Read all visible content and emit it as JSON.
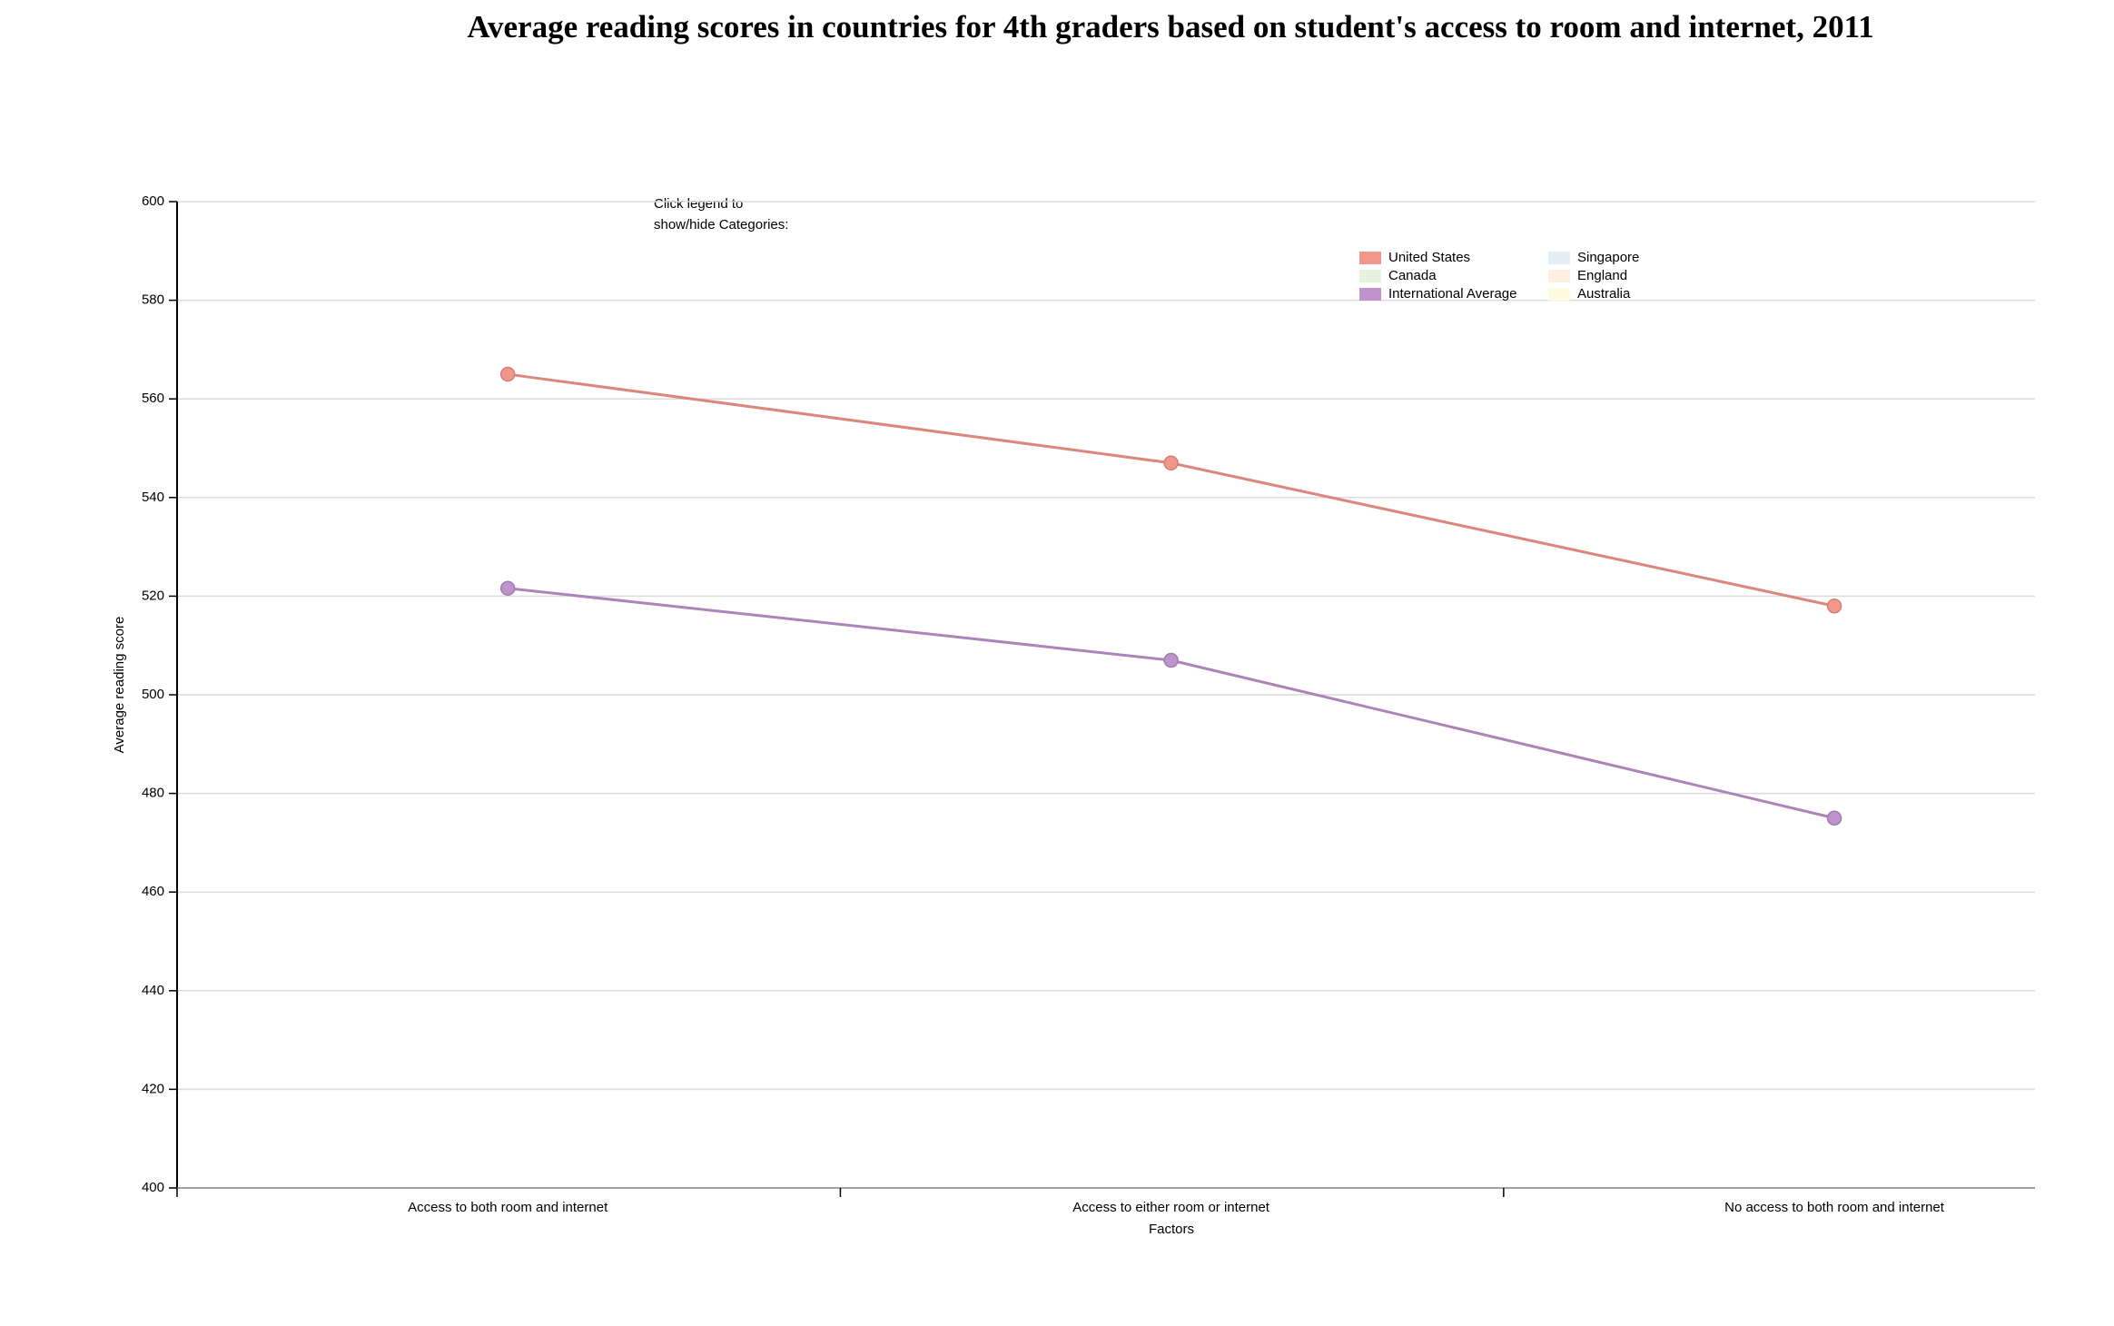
{
  "chart_data": {
    "type": "line",
    "title": "Average reading scores in countries for 4th graders based on student's access to room and internet, 2011",
    "xlabel": "Factors",
    "ylabel": "Average reading score",
    "legend_hint": [
      "Click legend to",
      "show/hide Categories:"
    ],
    "categories": [
      "Access to both room and internet",
      "Access to either room or internet",
      "No access to both room and internet"
    ],
    "series": [
      {
        "name": "United States",
        "color": "#f4968c",
        "visible": true,
        "values": [
          565,
          547,
          518
        ]
      },
      {
        "name": "Canada",
        "color": "#e6f4df",
        "visible": false,
        "values": [
          null,
          null,
          null
        ]
      },
      {
        "name": "International Average",
        "color": "#bf93cc",
        "visible": true,
        "values": [
          521.6,
          507,
          475
        ]
      },
      {
        "name": "Singapore",
        "color": "#e3edf6",
        "visible": false,
        "values": [
          null,
          null,
          null
        ]
      },
      {
        "name": "England",
        "color": "#fdeee2",
        "visible": false,
        "values": [
          null,
          null,
          null
        ]
      },
      {
        "name": "Australia",
        "color": "#fdfbe0",
        "visible": false,
        "values": [
          null,
          null,
          null
        ]
      }
    ],
    "ylim": [
      400,
      600
    ],
    "yticks": [
      400,
      420,
      440,
      460,
      480,
      500,
      520,
      540,
      560,
      580,
      600
    ],
    "grid": true
  }
}
